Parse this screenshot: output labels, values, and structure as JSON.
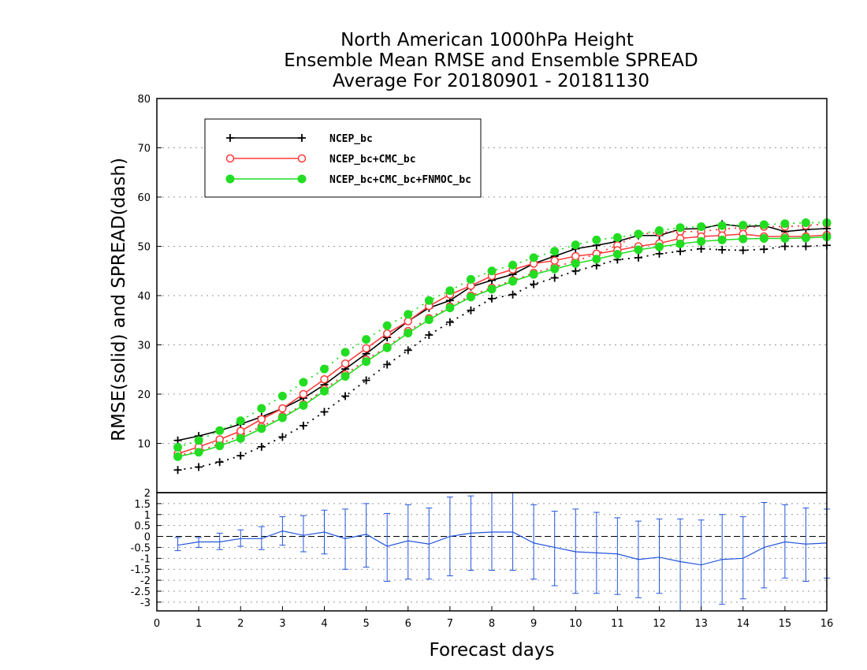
{
  "chart_data": [
    {
      "type": "line",
      "title_lines": [
        "North American 1000hPa Height",
        "Ensemble Mean RMSE and Ensemble SPREAD",
        "Average For 20180901 - 20181130"
      ],
      "xlabel": "Forecast days",
      "ylabel": "RMSE(solid)  and  SPREAD(dash)",
      "xlim": [
        0,
        16
      ],
      "ylim": [
        0,
        80
      ],
      "xticks": [
        "0",
        "1",
        "2",
        "3",
        "4",
        "5",
        "6",
        "7",
        "8",
        "9",
        "10",
        "11",
        "12",
        "13",
        "14",
        "15",
        "16"
      ],
      "yticks": [
        "10",
        "20",
        "30",
        "40",
        "50",
        "60",
        "70",
        "80"
      ],
      "grid": "horizontal dotted",
      "legend_position": "top-left",
      "x": [
        0.5,
        1,
        1.5,
        2,
        2.5,
        3,
        3.5,
        4,
        4.5,
        5,
        5.5,
        6,
        6.5,
        7,
        7.5,
        8,
        8.5,
        9,
        9.5,
        10,
        10.5,
        11,
        11.5,
        12,
        12.5,
        13,
        13.5,
        14,
        14.5,
        15,
        15.5,
        16
      ],
      "series": [
        {
          "name": "NCEP_bc",
          "color": "#000000",
          "marker": "plus",
          "rmse": [
            10.6,
            11.5,
            12.6,
            13.9,
            15.4,
            17.1,
            19.2,
            21.9,
            25.1,
            28.2,
            31.5,
            34.8,
            37.5,
            39.0,
            41.8,
            43.1,
            44.3,
            46.5,
            48.0,
            49.5,
            50.2,
            51.0,
            52.2,
            52.2,
            53.5,
            53.6,
            54.5,
            54.0,
            54.2,
            53.0,
            53.4,
            53.6
          ],
          "spread": [
            4.6,
            5.2,
            6.2,
            7.5,
            9.3,
            11.3,
            13.6,
            16.4,
            19.6,
            22.8,
            26.0,
            28.9,
            32.0,
            34.6,
            37.0,
            39.4,
            40.2,
            42.3,
            43.6,
            45.0,
            46.1,
            47.3,
            47.7,
            48.5,
            49.0,
            49.5,
            49.3,
            49.2,
            49.4,
            50.0,
            50.0,
            50.2
          ]
        },
        {
          "name": "NCEP_bc+CMC_bc",
          "color": "#ff3b3b",
          "marker": "open-circle",
          "rmse": [
            7.9,
            9.3,
            10.8,
            12.5,
            14.9,
            17.1,
            20.0,
            23.0,
            26.2,
            29.3,
            32.3,
            34.8,
            37.9,
            40.2,
            42.0,
            44.0,
            45.3,
            46.5,
            47.1,
            48.0,
            48.5,
            49.2,
            50.0,
            50.6,
            51.6,
            52.0,
            52.2,
            52.5,
            52.0,
            52.0,
            52.0,
            52.3
          ],
          "spread": [
            7.6,
            8.4,
            9.9,
            11.6,
            13.4,
            15.5,
            17.9,
            21.0,
            24.0,
            27.0,
            29.6,
            32.8,
            35.4,
            37.8,
            40.0,
            41.6,
            43.1,
            44.6,
            45.8,
            47.0,
            48.5,
            50.2,
            52.5,
            52.8,
            53.0,
            53.0,
            53.5,
            53.8,
            54.0,
            54.0,
            54.2,
            54.6
          ]
        },
        {
          "name": "NCEP_bc+CMC_bc+FNMOC_bc",
          "color": "#22dd22",
          "marker": "filled-circle",
          "rmse": [
            7.3,
            8.2,
            9.5,
            11.0,
            13.0,
            15.2,
            17.7,
            20.6,
            23.6,
            26.6,
            29.4,
            32.4,
            35.1,
            37.5,
            39.7,
            41.3,
            42.9,
            44.3,
            45.4,
            46.5,
            47.4,
            48.4,
            49.3,
            49.9,
            50.5,
            51.0,
            51.3,
            51.5,
            51.6,
            51.6,
            51.7,
            51.9
          ],
          "spread": [
            9.2,
            10.6,
            12.6,
            14.6,
            17.1,
            19.6,
            22.4,
            25.1,
            28.5,
            31.1,
            33.9,
            36.2,
            39.0,
            41.0,
            43.3,
            45.0,
            46.2,
            47.7,
            49.0,
            50.3,
            51.3,
            51.8,
            52.5,
            53.2,
            53.8,
            54.0,
            54.2,
            54.3,
            54.4,
            54.6,
            54.8,
            54.8
          ]
        }
      ]
    },
    {
      "type": "line",
      "description_of_panel": "difference panel with error bars",
      "xlim": [
        0,
        16
      ],
      "ylim": [
        -3.4,
        2
      ],
      "yticks": [
        "2",
        "1.5",
        "1",
        "0.5",
        "0",
        "-0.5",
        "-1",
        "-1.5",
        "-2",
        "-2.5",
        "-3"
      ],
      "color": "#2255dd",
      "x": [
        0.5,
        1,
        1.5,
        2,
        2.5,
        3,
        3.5,
        4,
        4.5,
        5,
        5.5,
        6,
        6.5,
        7,
        7.5,
        8,
        8.5,
        9,
        9.5,
        10,
        10.5,
        11,
        11.5,
        12,
        12.5,
        13,
        13.5,
        14,
        14.5,
        15,
        15.5,
        16
      ],
      "values": [
        -0.4,
        -0.25,
        -0.25,
        -0.1,
        -0.1,
        0.25,
        0.05,
        0.2,
        -0.1,
        0.1,
        -0.45,
        -0.2,
        -0.35,
        0.0,
        0.15,
        0.2,
        0.2,
        -0.3,
        -0.5,
        -0.7,
        -0.75,
        -0.8,
        -1.05,
        -0.95,
        -1.15,
        -1.3,
        -1.05,
        -1.0,
        -0.5,
        -0.25,
        -0.35,
        -0.3
      ],
      "err_low": [
        -0.65,
        -0.5,
        -0.6,
        -0.45,
        -0.6,
        -0.4,
        -0.7,
        -0.8,
        -1.5,
        -1.4,
        -2.05,
        -1.95,
        -1.95,
        -1.8,
        -1.55,
        -1.55,
        -1.55,
        -1.95,
        -2.25,
        -2.6,
        -2.6,
        -2.65,
        -2.8,
        -2.6,
        -3.4,
        -3.4,
        -3.1,
        -2.85,
        -2.35,
        -1.9,
        -2.05,
        -1.9
      ],
      "err_high": [
        -0.05,
        -0.05,
        0.15,
        0.3,
        0.45,
        0.9,
        0.95,
        1.2,
        1.25,
        1.5,
        1.05,
        1.45,
        1.3,
        1.8,
        1.85,
        2.0,
        2.0,
        1.45,
        1.15,
        1.25,
        1.1,
        0.85,
        0.7,
        0.8,
        0.8,
        0.75,
        1.0,
        0.9,
        1.55,
        1.45,
        1.3,
        1.25
      ]
    }
  ]
}
